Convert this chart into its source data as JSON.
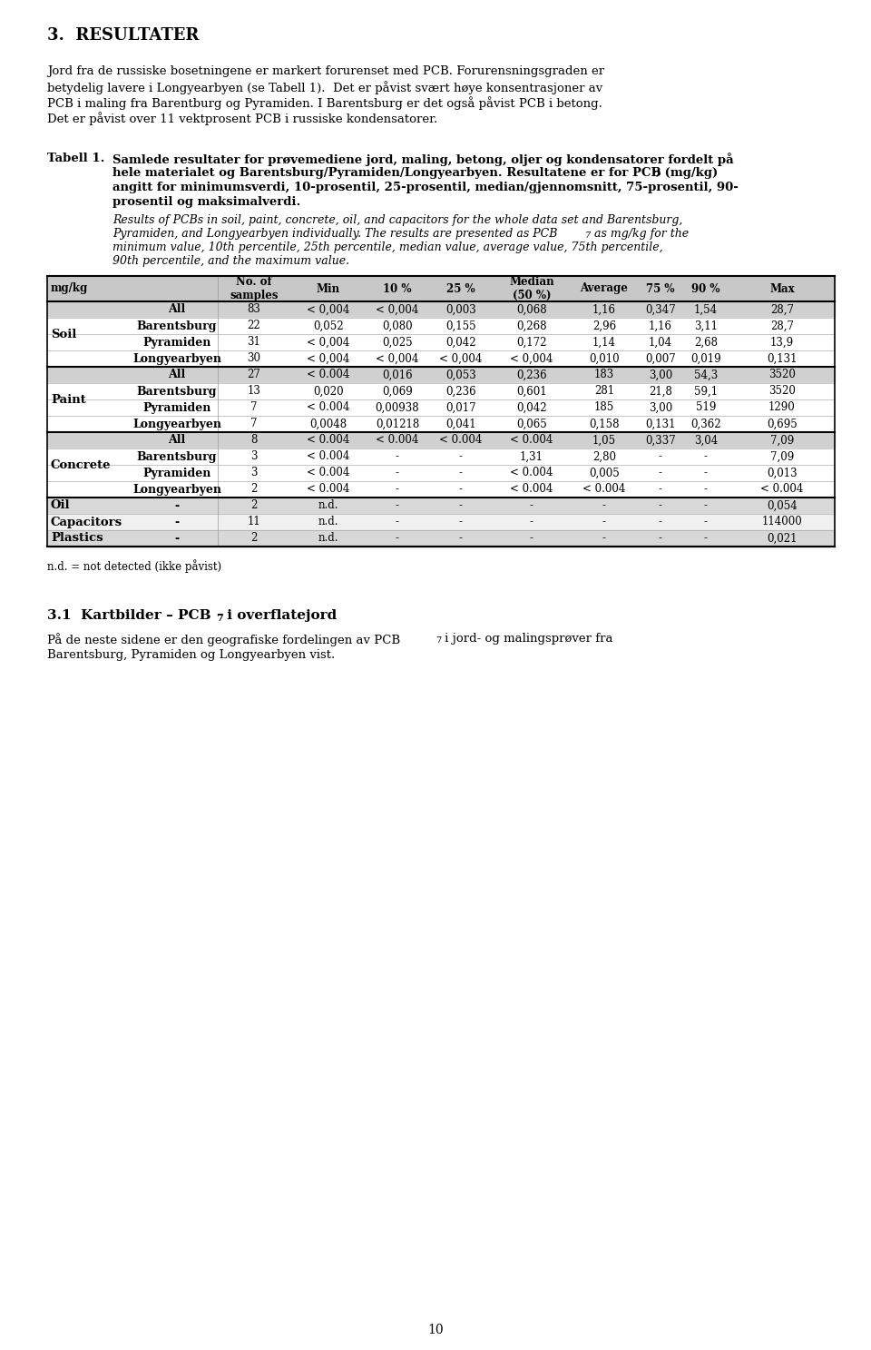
{
  "page_number": "10",
  "section_header": "3.  RESULTATER",
  "rows": [
    [
      "Soil",
      "All",
      "83",
      "< 0,004",
      "< 0,004",
      "0,003",
      "0,068",
      "1,16",
      "0,347",
      "1,54",
      "28,7"
    ],
    [
      "Soil",
      "Barentsburg",
      "22",
      "0,052",
      "0,080",
      "0,155",
      "0,268",
      "2,96",
      "1,16",
      "3,11",
      "28,7"
    ],
    [
      "Soil",
      "Pyramiden",
      "31",
      "< 0,004",
      "0,025",
      "0,042",
      "0,172",
      "1,14",
      "1,04",
      "2,68",
      "13,9"
    ],
    [
      "Soil",
      "Longyearbyen",
      "30",
      "< 0,004",
      "< 0,004",
      "< 0,004",
      "< 0,004",
      "0,010",
      "0,007",
      "0,019",
      "0,131"
    ],
    [
      "Paint",
      "All",
      "27",
      "< 0.004",
      "0,016",
      "0,053",
      "0,236",
      "183",
      "3,00",
      "54,3",
      "3520"
    ],
    [
      "Paint",
      "Barentsburg",
      "13",
      "0,020",
      "0,069",
      "0,236",
      "0,601",
      "281",
      "21,8",
      "59,1",
      "3520"
    ],
    [
      "Paint",
      "Pyramiden",
      "7",
      "< 0.004",
      "0,00938",
      "0,017",
      "0,042",
      "185",
      "3,00",
      "519",
      "1290"
    ],
    [
      "Paint",
      "Longyearbyen",
      "7",
      "0,0048",
      "0,01218",
      "0,041",
      "0,065",
      "0,158",
      "0,131",
      "0,362",
      "0,695"
    ],
    [
      "Concrete",
      "All",
      "8",
      "< 0.004",
      "< 0.004",
      "< 0.004",
      "< 0.004",
      "1,05",
      "0,337",
      "3,04",
      "7,09"
    ],
    [
      "Concrete",
      "Barentsburg",
      "3",
      "< 0.004",
      "-",
      "-",
      "1,31",
      "2,80",
      "-",
      "-",
      "7,09"
    ],
    [
      "Concrete",
      "Pyramiden",
      "3",
      "< 0.004",
      "-",
      "-",
      "< 0.004",
      "0,005",
      "-",
      "-",
      "0,013"
    ],
    [
      "Concrete",
      "Longyearbyen",
      "2",
      "< 0.004",
      "-",
      "-",
      "< 0.004",
      "< 0.004",
      "-",
      "-",
      "< 0.004"
    ],
    [
      "Oil",
      "-",
      "2",
      "n.d.",
      "-",
      "-",
      "-",
      "-",
      "-",
      "-",
      "0,054"
    ],
    [
      "Capacitors",
      "-",
      "11",
      "n.d.",
      "-",
      "-",
      "-",
      "-",
      "-",
      "-",
      "114000"
    ],
    [
      "Plastics",
      "-",
      "2",
      "n.d.",
      "-",
      "-",
      "-",
      "-",
      "-",
      "-",
      "0,021"
    ]
  ],
  "group_spans": {
    "Soil": [
      0,
      3
    ],
    "Paint": [
      4,
      7
    ],
    "Concrete": [
      8,
      11
    ]
  },
  "footnote": "n.d. = not detected (ikke påvist)",
  "background_color": "#ffffff"
}
